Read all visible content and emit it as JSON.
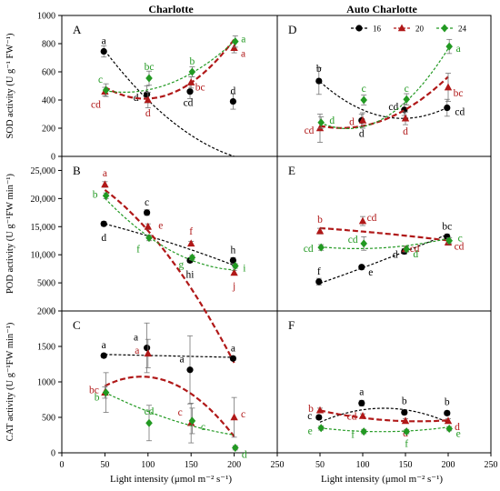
{
  "columns": [
    "Charlotte",
    "Auto Charlotte"
  ],
  "x_axis": {
    "label": "Light intensity (μmol m⁻² s⁻¹)",
    "ticks": [
      "0",
      "50",
      "100",
      "150",
      "200",
      "250"
    ],
    "range": [
      0,
      250
    ]
  },
  "colors": {
    "16": "#000000",
    "20": "#b01818",
    "24": "#229922"
  },
  "legend": [
    {
      "label": "16",
      "color": "#000000",
      "marker": "circle",
      "line": "dashed"
    },
    {
      "label": "20",
      "color": "#b01818",
      "marker": "triangle",
      "line": "dashed"
    },
    {
      "label": "24",
      "color": "#229922",
      "marker": "diamond",
      "line": "dashed"
    }
  ],
  "rows": [
    {
      "ylabel": "SOD activity (U g⁻¹ FW⁻¹)",
      "ylim": [
        0,
        1000
      ],
      "yticks": [
        "0",
        "200",
        "400",
        "600",
        "800",
        "1000"
      ]
    },
    {
      "ylabel": "POD activity (U g⁻¹FW min⁻¹)",
      "ylim": [
        0,
        27500
      ],
      "yticks": [
        "0",
        "5000",
        "10,000",
        "15,000",
        "20,000",
        "25,000"
      ]
    },
    {
      "ylabel": "CAT activity (U g⁻¹FW min⁻¹)",
      "ylim": [
        0,
        2000
      ],
      "yticks": [
        "0",
        "500",
        "1000",
        "1500",
        "2000"
      ]
    }
  ],
  "chart_data": [
    {
      "panel": "A",
      "type": "scatter",
      "column": "Charlotte",
      "row": 0,
      "x": [
        50,
        100,
        150,
        200
      ],
      "series": [
        {
          "name": "16",
          "values": [
            745,
            440,
            460,
            390
          ],
          "err": [
            40,
            60,
            50,
            55
          ],
          "labels": [
            "a",
            "d",
            "cd",
            "d"
          ],
          "fit": [
            0.02,
            -10,
            1200
          ]
        },
        {
          "name": "20",
          "values": [
            460,
            400,
            525,
            770
          ],
          "err": [
            30,
            55,
            40,
            35
          ],
          "labels": [
            "cd",
            "d",
            "bc",
            "a"
          ],
          "fit": [
            0.039,
            -7.5,
            770
          ]
        },
        {
          "name": "24",
          "values": [
            470,
            555,
            600,
            815
          ],
          "err": [
            45,
            50,
            35,
            40
          ],
          "labels": [
            "c",
            "bc",
            "b",
            "a"
          ],
          "fit": [
            0.0222,
            -3.22,
            572
          ]
        }
      ]
    },
    {
      "panel": "B",
      "type": "scatter",
      "column": "Charlotte",
      "row": 1,
      "x": [
        50,
        100,
        150,
        200
      ],
      "series": [
        {
          "name": "16",
          "values": [
            15500,
            17500,
            9000,
            9000
          ],
          "err": [
            400,
            500,
            400,
            500
          ],
          "labels": [
            "d",
            "c",
            "hi",
            "h"
          ],
          "fit": [
            -0.065,
            -33,
            17300
          ]
        },
        {
          "name": "20",
          "values": [
            22500,
            15000,
            12000,
            6800
          ],
          "err": [
            500,
            500,
            400,
            400
          ],
          "labels": [
            "a",
            "e",
            "f",
            "j"
          ],
          "fit": [
            -0.6,
            -55,
            25780
          ]
        },
        {
          "name": "24",
          "values": [
            20500,
            13000,
            9500,
            8000
          ],
          "err": [
            500,
            500,
            400,
            400
          ],
          "labels": [
            "b",
            "f",
            "g",
            "i"
          ],
          "fit": [
            0.5,
            -210,
            29300
          ]
        }
      ]
    },
    {
      "panel": "C",
      "type": "scatter",
      "column": "Charlotte",
      "row": 2,
      "x": [
        50,
        100,
        150,
        200
      ],
      "series": [
        {
          "name": "16",
          "values": [
            1370,
            1480,
            1170,
            1330
          ],
          "err": [
            30,
            350,
            480,
            30
          ],
          "labels": [
            "a",
            "a",
            "a",
            "a"
          ],
          "fit": [
            0,
            -0.27,
            1400
          ]
        },
        {
          "name": "20",
          "values": [
            850,
            1400,
            420,
            500
          ],
          "err": [
            80,
            200,
            280,
            280
          ],
          "labels": [
            "bc",
            "a",
            "c",
            "c"
          ],
          "fit": [
            -0.073,
            13.5,
            450
          ]
        },
        {
          "name": "24",
          "values": [
            850,
            420,
            450,
            70
          ],
          "err": [
            280,
            250,
            180,
            30
          ],
          "labels": [
            "b",
            "cd",
            "c",
            "d"
          ],
          "fit": [
            0.0137,
            -7.43,
            1190
          ]
        }
      ]
    },
    {
      "panel": "D",
      "type": "scatter",
      "column": "Auto Charlotte",
      "row": 0,
      "x": [
        50,
        100,
        150,
        200
      ],
      "series": [
        {
          "name": "16",
          "values": [
            535,
            255,
            330,
            345
          ],
          "err": [
            95,
            45,
            40,
            60
          ],
          "labels": [
            "b",
            "d",
            "cd",
            "cd"
          ],
          "fit": [
            0.028,
            -8.2,
            870
          ]
        },
        {
          "name": "20",
          "values": [
            200,
            255,
            270,
            490
          ],
          "err": [
            100,
            55,
            45,
            100
          ],
          "labels": [
            "cd",
            "d",
            "d",
            "bc"
          ],
          "fit": [
            0.0233,
            -3.5,
            333
          ]
        },
        {
          "name": "24",
          "values": [
            240,
            400,
            405,
            780
          ],
          "err": [
            40,
            35,
            40,
            50
          ],
          "labels": [
            "d",
            "c",
            "c",
            "a"
          ],
          "fit": [
            0.041,
            -6.75,
            475
          ]
        }
      ]
    },
    {
      "panel": "E",
      "type": "scatter",
      "column": "Auto Charlotte",
      "row": 1,
      "x": [
        50,
        100,
        150,
        200
      ],
      "series": [
        {
          "name": "16",
          "values": [
            5200,
            7800,
            10600,
            13200
          ],
          "err": [
            600,
            400,
            500,
            500
          ],
          "labels": [
            "f",
            "e",
            "d",
            "bc"
          ],
          "fit": [
            0.0333,
            50,
            2350
          ]
        },
        {
          "name": "20",
          "values": [
            14200,
            16000,
            11000,
            12200
          ],
          "err": [
            500,
            800,
            500,
            500
          ],
          "labels": [
            "b",
            "cd",
            "cd",
            "cd"
          ],
          "fit": [
            -0.0267,
            -8,
            15200
          ]
        },
        {
          "name": "24",
          "values": [
            11300,
            12000,
            11000,
            12500
          ],
          "err": [
            500,
            1200,
            500,
            500
          ],
          "labels": [
            "cd",
            "cd",
            "d",
            "c"
          ],
          "fit": [
            0.16,
            -30,
            12500
          ]
        }
      ]
    },
    {
      "panel": "F",
      "type": "scatter",
      "column": "Auto Charlotte",
      "row": 2,
      "x": [
        50,
        100,
        150,
        200
      ],
      "series": [
        {
          "name": "16",
          "values": [
            500,
            700,
            570,
            560
          ],
          "err": [
            30,
            40,
            30,
            30
          ],
          "labels": [
            "c",
            "a",
            "b",
            "b"
          ],
          "fit": [
            -0.0353,
            8.8,
            80
          ]
        },
        {
          "name": "20",
          "values": [
            600,
            520,
            450,
            450
          ],
          "err": [
            30,
            30,
            30,
            30
          ],
          "labels": [
            "b",
            "cd",
            "d",
            "d"
          ],
          "fit": [
            0.0117,
            -3.85,
            761
          ]
        },
        {
          "name": "24",
          "values": [
            350,
            300,
            300,
            340
          ],
          "err": [
            30,
            30,
            30,
            30
          ],
          "labels": [
            "e",
            "f",
            "f",
            "e"
          ],
          "fit": [
            0.0103,
            -2.5,
            450
          ]
        }
      ]
    }
  ]
}
